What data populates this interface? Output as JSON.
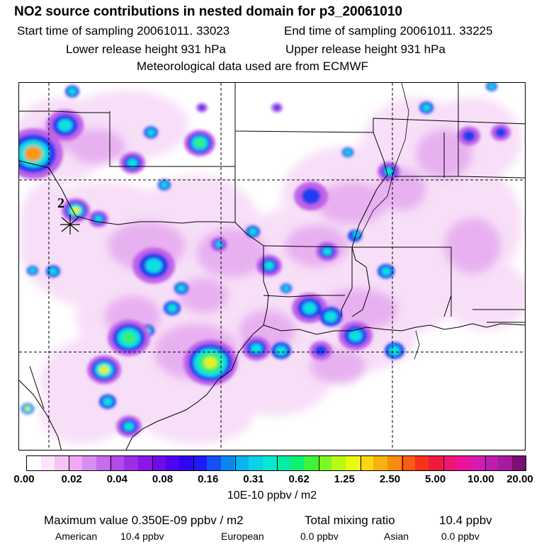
{
  "header": {
    "title": "NO2 source contributions in nested domain for p3_20061010",
    "start_label": "Start time of sampling 20061011. 33023",
    "end_label": "End time of sampling 20061011. 33225",
    "lower_label": "Lower release height  931 hPa",
    "upper_label": "Upper release height  931 hPa",
    "met_label": "Meteorological data used are from ECMWF"
  },
  "map": {
    "marker_label": "2",
    "plume_colors": {
      "very_light": "#f7dcf7",
      "light": "#e6a8f0",
      "medium": "#c064e8",
      "strong": "#8a1ee0",
      "blue": "#1e3cf0",
      "cyan": "#10e0e0",
      "green": "#38f070",
      "yellow": "#e8f020",
      "orange": "#f89818"
    }
  },
  "colorbar": {
    "ticks": [
      "0.00",
      "0.02",
      "0.04",
      "0.08",
      "0.16",
      "0.31",
      "0.62",
      "1.25",
      "2.50",
      "5.00",
      "10.00",
      "20.00"
    ],
    "units": "10E-10 ppbv / m2",
    "colors": [
      "#ffffff",
      "#fbe6fb",
      "#f4c4f4",
      "#eeaaf0",
      "#d88ef0",
      "#c66cec",
      "#b04ce8",
      "#9c2ee4",
      "#8c16e6",
      "#6e0ce8",
      "#5004ee",
      "#3204f2",
      "#1e1cf4",
      "#1450f4",
      "#0a86f2",
      "#08b4f0",
      "#0ad2e8",
      "#06e8d0",
      "#06eca4",
      "#10f070",
      "#3cf438",
      "#7cf820",
      "#b8fa14",
      "#e8fa12",
      "#fad810",
      "#fab00e",
      "#fa8c10",
      "#fa5a14",
      "#f63218",
      "#f01a40",
      "#ee1670",
      "#ea1498",
      "#d81ab4",
      "#c01cb4",
      "#a61c9e",
      "#7a1076"
    ]
  },
  "stats": {
    "max_label": "Maximum value  0.350E-09 ppbv / m2",
    "total_label": "Total mixing ratio",
    "total_value": "10.4 ppbv",
    "american_label": "American",
    "american_value": "10.4 ppbv",
    "european_label": "European",
    "european_value": "0.0 ppbv",
    "asian_label": "Asian",
    "asian_value": "0.0 ppbv"
  }
}
